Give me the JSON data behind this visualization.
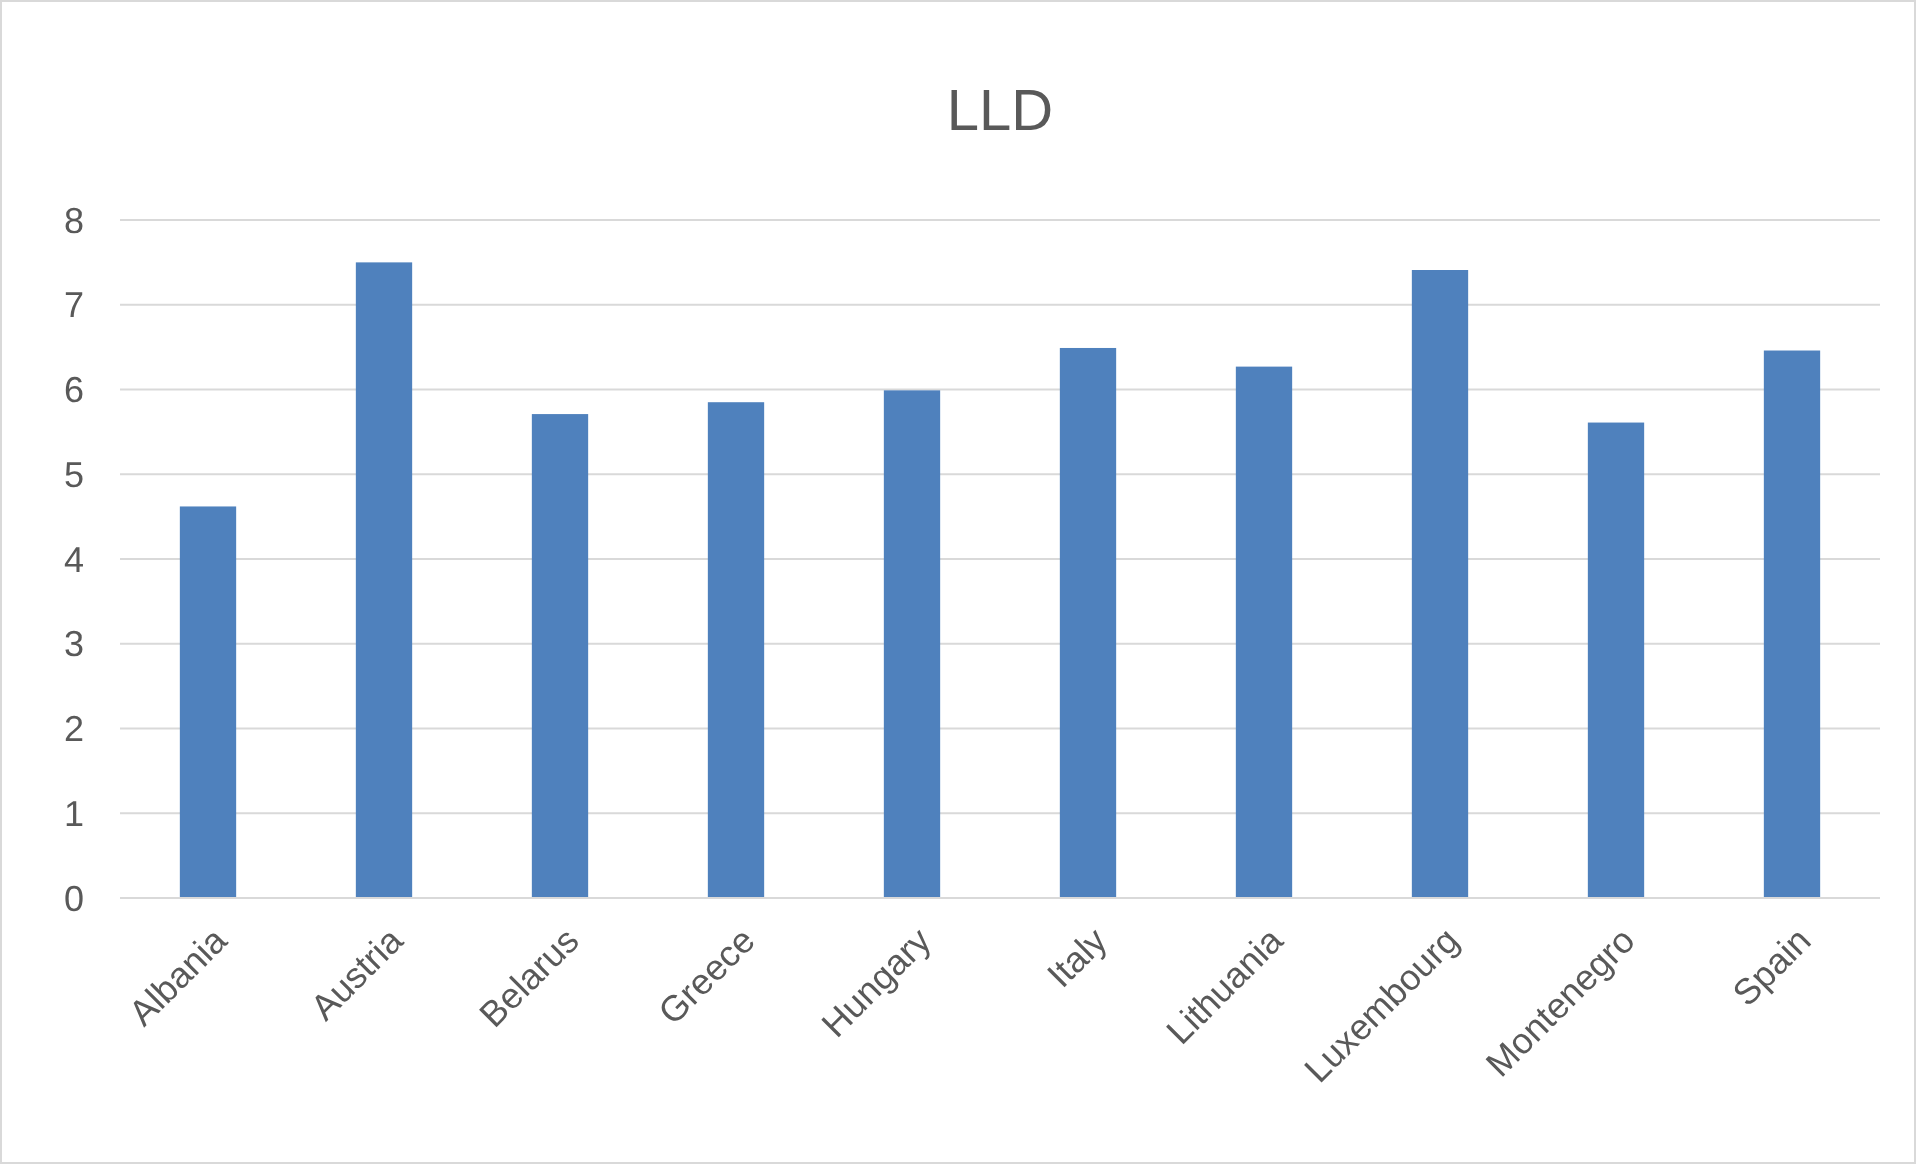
{
  "chart_data": {
    "type": "bar",
    "title": "LLD",
    "categories": [
      "Albania",
      "Austria",
      "Belarus",
      "Greece",
      "Hungary",
      "Italy",
      "Lithuania",
      "Luxembourg",
      "Montenegro",
      "Spain"
    ],
    "values": [
      4.62,
      7.5,
      5.71,
      5.85,
      5.99,
      6.49,
      6.27,
      7.41,
      5.61,
      6.46
    ],
    "color": "#4f81bd",
    "ylim": [
      0,
      8
    ],
    "yticks": [
      0,
      1,
      2,
      3,
      4,
      5,
      6,
      7,
      8
    ],
    "grid": "y"
  }
}
